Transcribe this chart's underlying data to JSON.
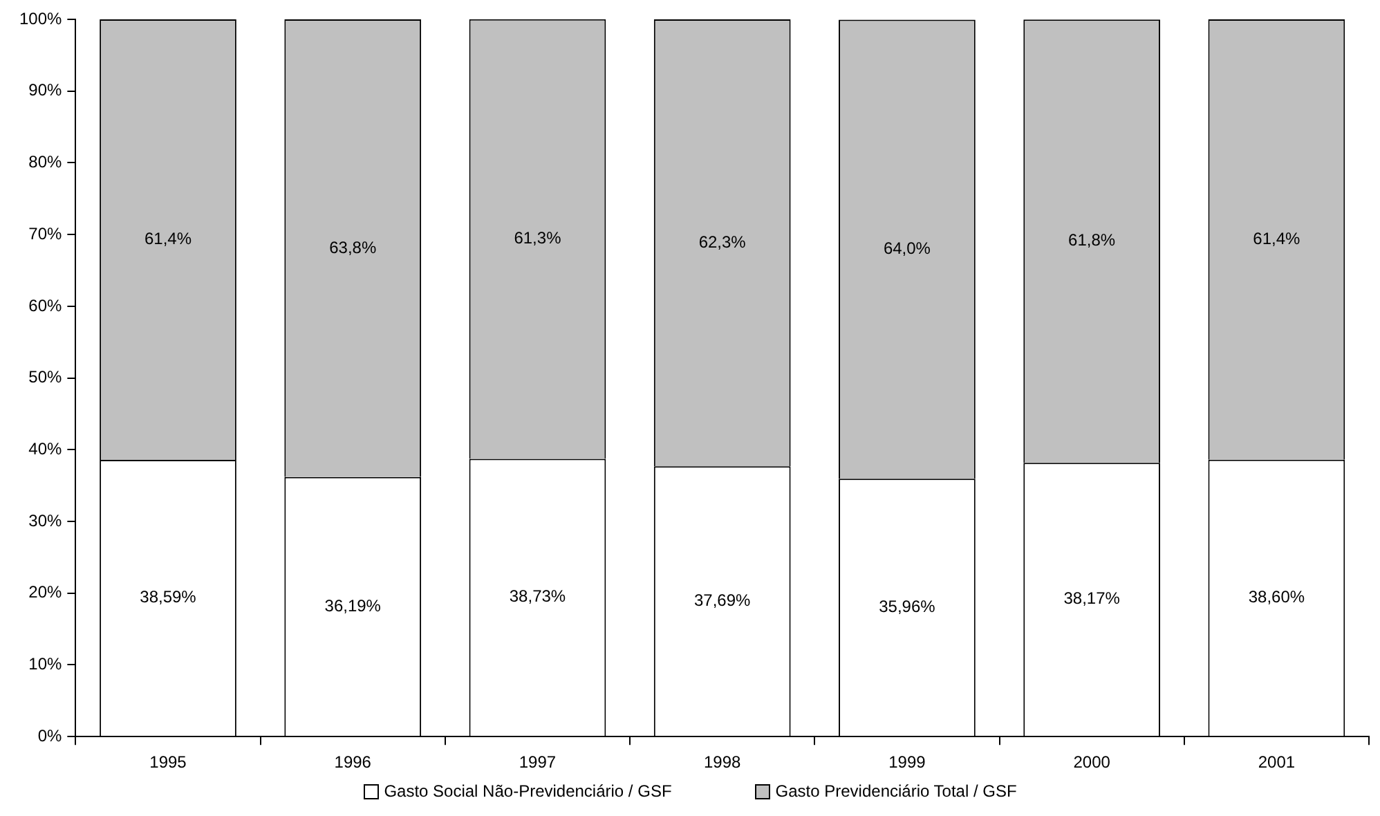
{
  "chart_data": {
    "type": "bar",
    "stacked": true,
    "categories": [
      "1995",
      "1996",
      "1997",
      "1998",
      "1999",
      "2000",
      "2001"
    ],
    "series": [
      {
        "name": "Gasto Social Não-Previdenciário / GSF",
        "color": "#ffffff",
        "values": [
          38.59,
          36.19,
          38.73,
          37.69,
          35.96,
          38.17,
          38.6
        ],
        "value_labels": [
          "38,59%",
          "36,19%",
          "38,73%",
          "37,69%",
          "35,96%",
          "38,17%",
          "38,60%"
        ]
      },
      {
        "name": "Gasto Previdenciário Total / GSF",
        "color": "#c0c0c0",
        "values": [
          61.4,
          63.8,
          61.3,
          62.3,
          64.0,
          61.8,
          61.4
        ],
        "value_labels": [
          "61,4%",
          "63,8%",
          "61,3%",
          "62,3%",
          "64,0%",
          "61,8%",
          "61,4%"
        ]
      }
    ],
    "ylim": [
      0,
      100
    ],
    "yticks": [
      {
        "value": 0,
        "label": "0%"
      },
      {
        "value": 10,
        "label": "10%"
      },
      {
        "value": 20,
        "label": "20%"
      },
      {
        "value": 30,
        "label": "30%"
      },
      {
        "value": 40,
        "label": "40%"
      },
      {
        "value": 50,
        "label": "50%"
      },
      {
        "value": 60,
        "label": "60%"
      },
      {
        "value": 70,
        "label": "70%"
      },
      {
        "value": 80,
        "label": "80%"
      },
      {
        "value": 90,
        "label": "90%"
      },
      {
        "value": 100,
        "label": "100%"
      }
    ],
    "grid": false,
    "legend": "bottom"
  }
}
